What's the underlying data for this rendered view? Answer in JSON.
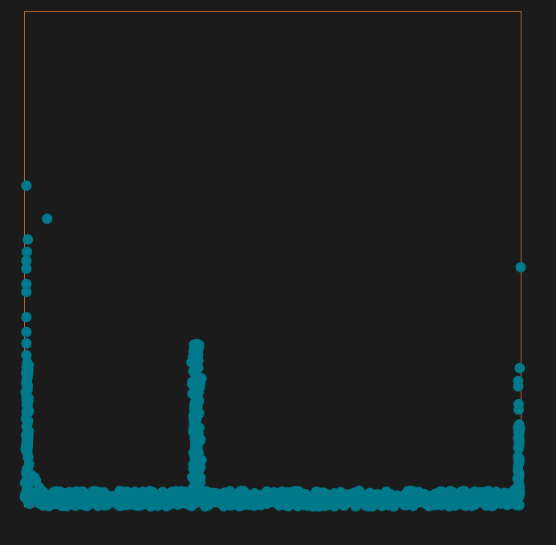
{
  "chart_data": {
    "type": "scatter",
    "title": "",
    "xlabel": "",
    "ylabel": "",
    "xlim": [
      0,
      100
    ],
    "ylim": [
      0,
      100
    ],
    "grid": false,
    "legend": "none",
    "colors": {
      "background": "#1b1b1c",
      "frame": "#b8682e",
      "points": "#00798a"
    },
    "series": [
      {
        "points": [
          {
            "x": 0.3,
            "y": 64.9
          },
          {
            "x": 4.5,
            "y": 58.2
          },
          {
            "x": 0.6,
            "y": 54.0
          },
          {
            "x": 0.4,
            "y": 51.5
          },
          {
            "x": 0.3,
            "y": 49.7
          },
          {
            "x": 0.3,
            "y": 48.1
          },
          {
            "x": 0.3,
            "y": 45.0
          },
          {
            "x": 0.3,
            "y": 43.4
          },
          {
            "x": 0.3,
            "y": 38.3
          },
          {
            "x": 0.3,
            "y": 35.3
          },
          {
            "x": 0.3,
            "y": 33.0
          },
          {
            "x": 0.3,
            "y": 30.6
          },
          {
            "x": 100.0,
            "y": 48.4
          },
          {
            "x": 99.8,
            "y": 28.0
          },
          {
            "x": 99.5,
            "y": 25.4
          },
          {
            "x": 99.5,
            "y": 24.3
          },
          {
            "x": 99.6,
            "y": 20.7
          },
          {
            "x": 99.6,
            "y": 19.6
          },
          {
            "x": 99.7,
            "y": 16.6
          },
          {
            "x": 99.7,
            "y": 13.9
          }
        ],
        "clusters": [
          {
            "shape": "vertical",
            "x": 0.5,
            "spread": 0.6,
            "y_from": 2,
            "y_to": 29.5,
            "count": 90
          },
          {
            "shape": "vertical",
            "x": 34.6,
            "spread": 1.5,
            "y_from": 2,
            "y_to": 33.0,
            "count": 180
          },
          {
            "shape": "vertical",
            "x": 99.6,
            "spread": 0.4,
            "y_from": 1.5,
            "y_to": 16.0,
            "count": 50
          },
          {
            "shape": "curve",
            "x_from": 0,
            "x_to": 8,
            "y_bottom": 1.0,
            "y_top": 12,
            "count": 60
          },
          {
            "shape": "curve",
            "x_from": 30,
            "x_to": 38,
            "y_bottom": 1.0,
            "y_top": 8,
            "count": 40
          },
          {
            "shape": "curve",
            "x_from": 95,
            "x_to": 100,
            "y_bottom": 1.0,
            "y_top": 8,
            "count": 30
          },
          {
            "shape": "band",
            "x_from": 0,
            "x_to": 100,
            "y_from": 0,
            "y_to": 3.2,
            "count": 650
          }
        ]
      }
    ]
  }
}
